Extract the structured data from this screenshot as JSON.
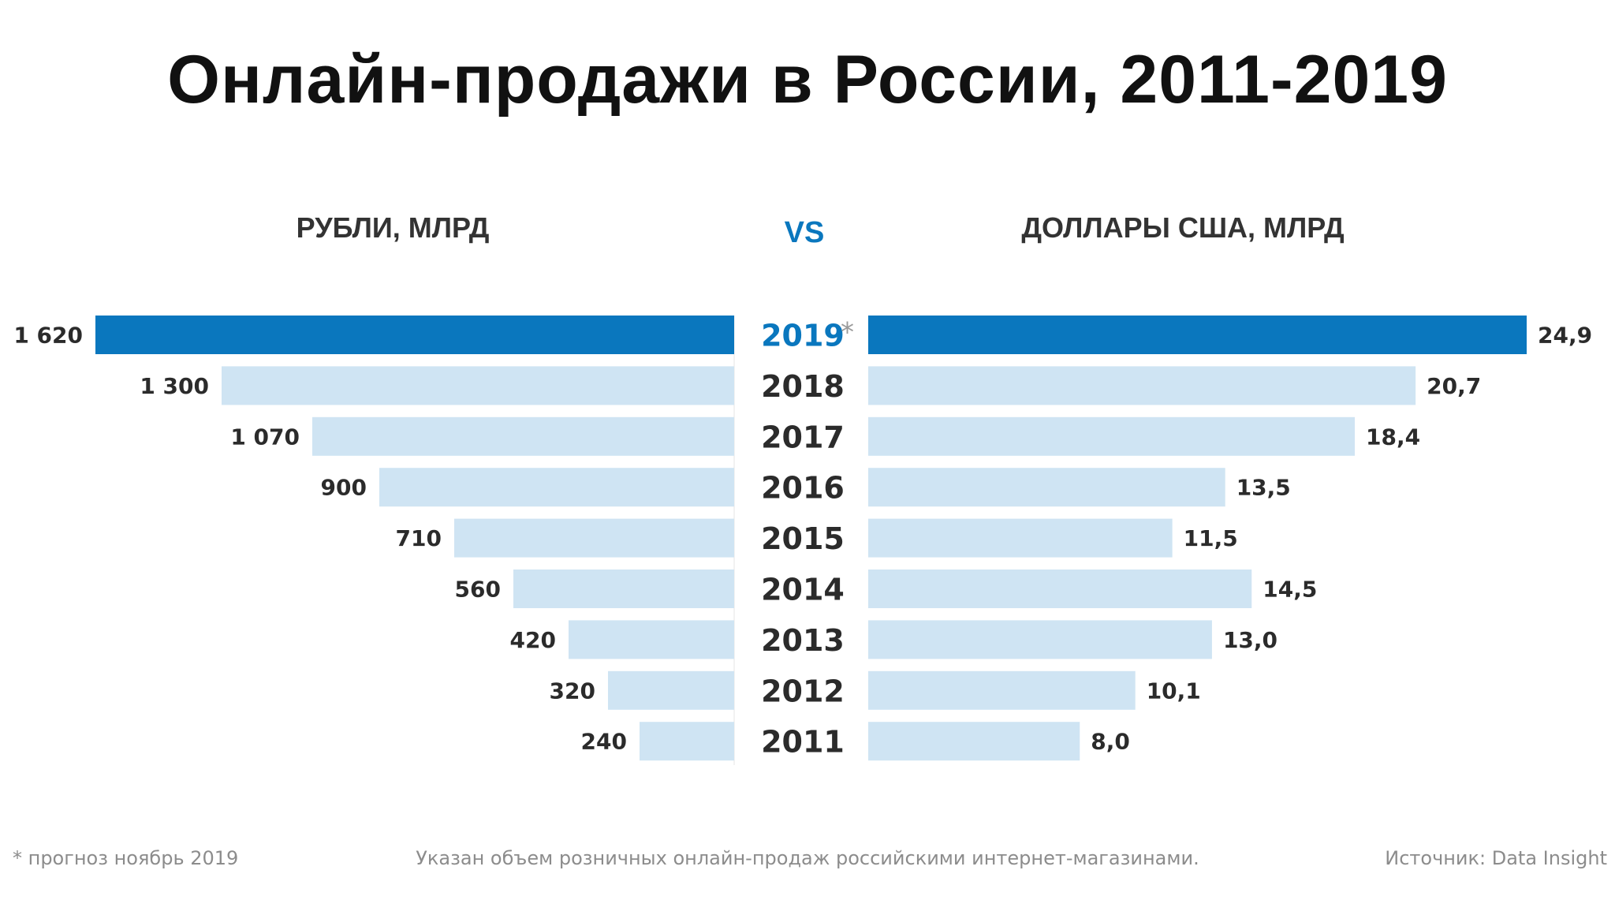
{
  "title": "Онлайн-продажи в России, 2011-2019",
  "left_header": "РУБЛИ, МЛРД",
  "vs_label": "VS",
  "right_header": "ДОЛЛАРЫ США, МЛРД",
  "colors": {
    "highlight": "#0a77be",
    "bar": "#cfe4f3",
    "text": "#2b2b2b",
    "year_highlight": "#0a77be",
    "asterisk": "#9a9a9a"
  },
  "chart_data": {
    "type": "bar",
    "orientation": "horizontal-butterfly",
    "categories": [
      "2019",
      "2018",
      "2017",
      "2016",
      "2015",
      "2014",
      "2013",
      "2012",
      "2011"
    ],
    "highlight_category": "2019",
    "highlight_marker": "*",
    "series": [
      {
        "name": "РУБЛИ, МЛРД",
        "side": "left",
        "values": [
          1620,
          1300,
          1070,
          900,
          710,
          560,
          420,
          320,
          240
        ],
        "labels": [
          "1 620",
          "1 300",
          "1 070",
          "900",
          "710",
          "560",
          "420",
          "320",
          "240"
        ]
      },
      {
        "name": "ДОЛЛАРЫ США, МЛРД",
        "side": "right",
        "values": [
          24.9,
          20.7,
          18.4,
          13.5,
          11.5,
          14.5,
          13.0,
          10.1,
          8.0
        ],
        "labels": [
          "24,9",
          "20,7",
          "18,4",
          "13,5",
          "11,5",
          "14,5",
          "13,0",
          "10,1",
          "8,0"
        ]
      }
    ]
  },
  "footer": {
    "left": "* прогноз ноябрь 2019",
    "center": "Указан объем розничных онлайн-продаж российскими интернет-магазинами.",
    "right": "Источник: Data Insight"
  }
}
